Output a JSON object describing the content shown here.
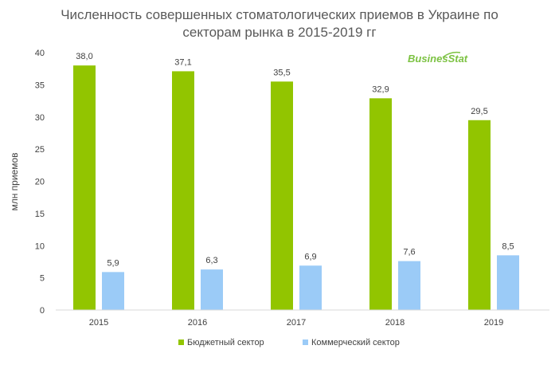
{
  "chart_data": {
    "type": "bar",
    "title_line1": "Численность совершенных стоматологических приемов в Украине по",
    "title_line2": "секторам рынка в 2015-2019 гг",
    "ylabel": "млн приемов",
    "xlabel": "",
    "ylim": [
      0,
      40
    ],
    "yticks": [
      0,
      5,
      10,
      15,
      20,
      25,
      30,
      35,
      40
    ],
    "categories": [
      "2015",
      "2016",
      "2017",
      "2018",
      "2019"
    ],
    "series": [
      {
        "name": "Бюджетный сектор",
        "color": "#92c500",
        "values": [
          38.0,
          37.1,
          35.5,
          32.9,
          29.5
        ],
        "labels": [
          "38,0",
          "37,1",
          "35,5",
          "32,9",
          "29,5"
        ]
      },
      {
        "name": "Коммерческий сектор",
        "color": "#9bcbf7",
        "values": [
          5.9,
          6.3,
          6.9,
          7.6,
          8.5
        ],
        "labels": [
          "5,9",
          "6,3",
          "6,9",
          "7,6",
          "8,5"
        ]
      }
    ],
    "grid": false,
    "legend_position": "bottom",
    "watermark": "BusinesStat"
  }
}
